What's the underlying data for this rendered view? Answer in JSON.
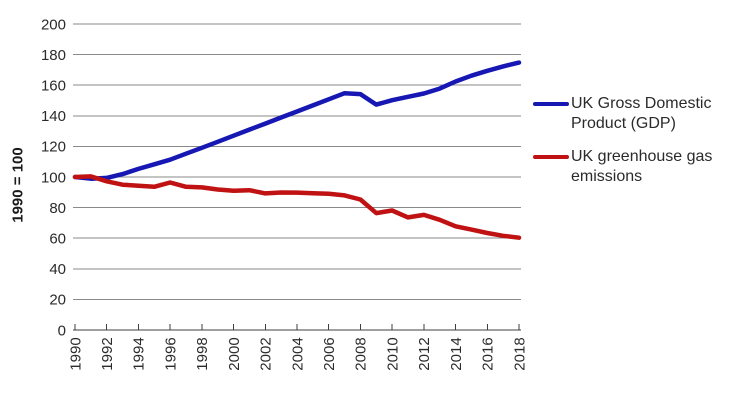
{
  "chart_data": {
    "type": "line",
    "title": "",
    "xlabel": "",
    "ylabel": "1990 = 100",
    "ylim": [
      0,
      200
    ],
    "xlim": [
      1990,
      2018
    ],
    "y_ticks": [
      0,
      20,
      40,
      60,
      80,
      100,
      120,
      140,
      160,
      180,
      200
    ],
    "x_tick_labels": [
      "1990",
      "1992",
      "1994",
      "1996",
      "1998",
      "2000",
      "2002",
      "2004",
      "2006",
      "2008",
      "2010",
      "2012",
      "2014",
      "2016",
      "2018"
    ],
    "grid": "horizontal",
    "legend_position": "right",
    "x": [
      1990,
      1991,
      1992,
      1993,
      1994,
      1995,
      1996,
      1997,
      1998,
      1999,
      2000,
      2001,
      2002,
      2003,
      2004,
      2005,
      2006,
      2007,
      2008,
      2009,
      2010,
      2011,
      2012,
      2013,
      2014,
      2015,
      2016,
      2017,
      2018
    ],
    "series": [
      {
        "name": "UK Gross Domestic Product (GDP)",
        "color": "#1717b4",
        "values": [
          100,
          98.9,
          99.4,
          101.9,
          105.3,
          108.3,
          111.3,
          115.2,
          119.1,
          123.0,
          127.0,
          131.0,
          134.9,
          138.9,
          142.8,
          146.8,
          150.8,
          154.8,
          154.2,
          147.3,
          150.2,
          152.4,
          154.6,
          157.8,
          162.4,
          166.2,
          169.4,
          172.3,
          174.8
        ]
      },
      {
        "name": "UK greenhouse gas emissions",
        "color": "#c01212",
        "values": [
          100,
          100.4,
          97.2,
          95.0,
          94.3,
          93.6,
          96.4,
          93.6,
          93.2,
          91.8,
          91.0,
          91.4,
          89.3,
          89.9,
          89.8,
          89.4,
          89.0,
          88.0,
          85.3,
          76.4,
          78.1,
          73.6,
          75.2,
          72.0,
          67.8,
          65.6,
          63.4,
          61.6,
          60.3
        ]
      }
    ]
  }
}
